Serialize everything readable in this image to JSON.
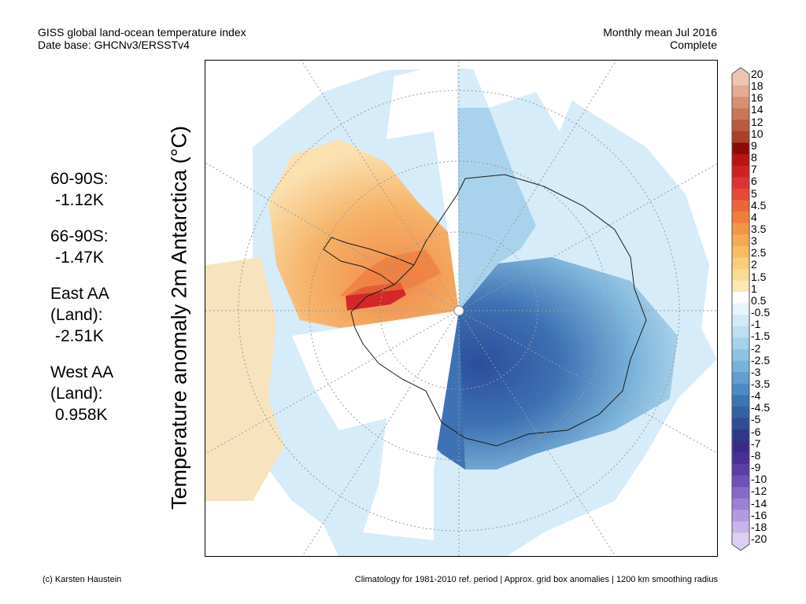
{
  "header": {
    "title_line1": "GISS global land-ocean temperature index",
    "title_line2": "Date base: GHCNv3/ERSSTv4",
    "period_line1": "Monthly mean Jul 2016",
    "period_line2": "Complete"
  },
  "y_label": "Temperature anomaly 2m Antarctica (°C)",
  "stats": [
    {
      "label": "60-90S:",
      "value": "-1.12K"
    },
    {
      "label": "66-90S:",
      "value": "-1.47K"
    },
    {
      "label": "East AA\n(Land):",
      "value": "-2.51K"
    },
    {
      "label": "West AA\n(Land):",
      "value": "0.958K"
    }
  ],
  "colorbar": {
    "labels": [
      "20",
      "18",
      "16",
      "14",
      "12",
      "10",
      "9",
      "8",
      "7",
      "6",
      "5",
      "4.5",
      "4",
      "3.5",
      "3",
      "2.5",
      "2",
      "1.5",
      "1",
      "0.5",
      "-0.5",
      "-1",
      "-1.5",
      "-2",
      "-2.5",
      "-3",
      "-3.5",
      "-4",
      "-4.5",
      "-5",
      "-6",
      "-7",
      "-8",
      "-9",
      "-10",
      "-12",
      "-14",
      "-16",
      "-18",
      "-20"
    ],
    "colors": [
      "#eec5b3",
      "#e4ab91",
      "#d89072",
      "#c87657",
      "#b85a3f",
      "#a8402b",
      "#8c0a0a",
      "#b81414",
      "#cc2222",
      "#dc3434",
      "#e64a36",
      "#ec6538",
      "#f07f3c",
      "#f39647",
      "#f6aa54",
      "#f8bc63",
      "#f9cd7a",
      "#fadb95",
      "#fbe8b5",
      "#ffffff",
      "#e8f4fc",
      "#d2eaf7",
      "#bcdff1",
      "#a5d2ea",
      "#8fc3e2",
      "#78b1d9",
      "#629ecf",
      "#4d89c3",
      "#3d74b5",
      "#3461a6",
      "#2e4c98",
      "#2e398a",
      "#3a2b88",
      "#4a2f96",
      "#5c3ea6",
      "#7052b6",
      "#8668c6",
      "#9c80d4",
      "#b29ae0",
      "#c8b4ea",
      "#dccff2"
    ]
  },
  "footer": {
    "credit": "(c) Karsten Haustein",
    "note": "Climatology for 1981-2010 ref. period | Approx. grid box anomalies | 1200 km smoothing radius"
  }
}
